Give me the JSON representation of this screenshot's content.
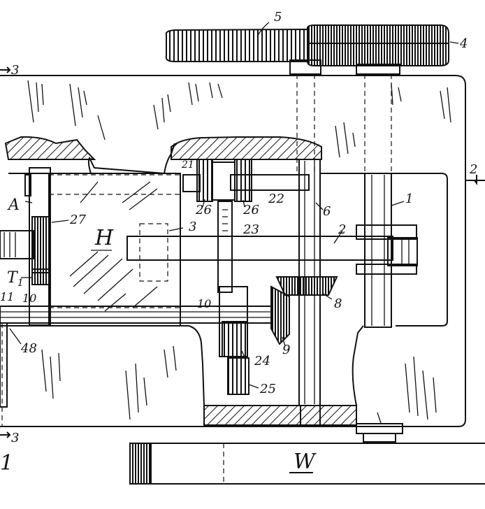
{
  "labels": {
    "n1": "1",
    "n2": "2",
    "n2_arrow": "2",
    "n3_top": "3",
    "n3_bottom": "3",
    "n3_mid": "3",
    "n4": "4",
    "n5": "5",
    "n6": "6",
    "n8": "8",
    "n9": "9",
    "n10_left": "10",
    "n10_mid": "10",
    "n11": "11",
    "n21": "21",
    "n22": "22",
    "n23": "23",
    "n24": "24",
    "n25": "25",
    "n26_left": "26",
    "n26_right": "26",
    "n27": "27",
    "n48": "48",
    "A": "A",
    "H": "H",
    "T1": "T",
    "T1_sub": "1",
    "W": "W",
    "fig": "1"
  }
}
